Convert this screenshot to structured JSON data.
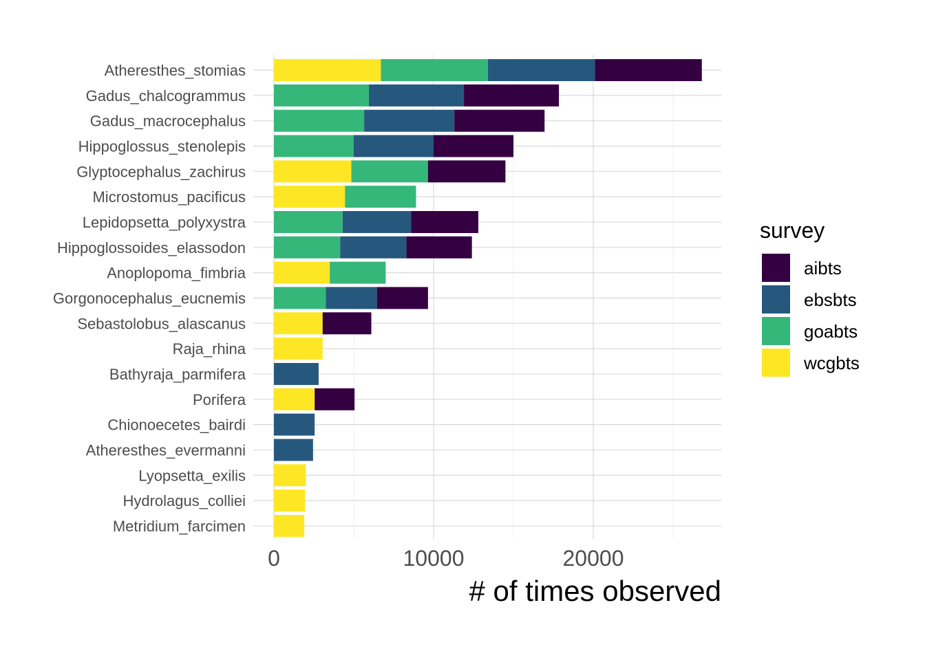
{
  "chart_data": {
    "type": "bar",
    "orientation": "horizontal",
    "stacked": true,
    "title": "",
    "xlabel": "# of times observed",
    "ylabel": "",
    "xlim": [
      0,
      28000
    ],
    "x_ticks": [
      0,
      10000,
      20000
    ],
    "grid": true,
    "legend": {
      "title": "survey",
      "position": "right"
    },
    "categories": [
      "Atheresthes_stomias",
      "Gadus_chalcogrammus",
      "Gadus_macrocephalus",
      "Hippoglossus_stenolepis",
      "Glyptocephalus_zachirus",
      "Microstomus_pacificus",
      "Lepidopsetta_polyxystra",
      "Hippoglossoides_elassodon",
      "Anoplopoma_fimbria",
      "Gorgonocephalus_eucnemis",
      "Sebastolobus_alascanus",
      "Raja_rhina",
      "Bathyraja_parmifera",
      "Porifera",
      "Chionoecetes_bairdi",
      "Atheresthes_evermanni",
      "Lyopsetta_exilis",
      "Hydrolagus_colliei",
      "Metridium_farcimen"
    ],
    "series": [
      {
        "name": "wcgbts",
        "color": "#fde725",
        "values": [
          6700,
          0,
          0,
          0,
          4850,
          4450,
          0,
          0,
          3500,
          0,
          3050,
          3050,
          0,
          2550,
          0,
          0,
          2000,
          1950,
          1900
        ]
      },
      {
        "name": "goabts",
        "color": "#35b779",
        "values": [
          6700,
          5950,
          5650,
          5000,
          4800,
          4450,
          4300,
          4150,
          3500,
          3250,
          0,
          0,
          0,
          0,
          0,
          0,
          0,
          0,
          0
        ]
      },
      {
        "name": "ebsbts",
        "color": "#26587e",
        "values": [
          6700,
          5950,
          5650,
          5000,
          0,
          0,
          4300,
          4150,
          0,
          3200,
          0,
          0,
          2800,
          0,
          2550,
          2450,
          0,
          0,
          0
        ]
      },
      {
        "name": "aibts",
        "color": "#350042",
        "values": [
          6700,
          5950,
          5650,
          5000,
          4850,
          0,
          4200,
          4100,
          0,
          3200,
          3050,
          0,
          0,
          2500,
          0,
          0,
          0,
          0,
          0
        ]
      }
    ],
    "legend_order": [
      "aibts",
      "ebsbts",
      "goabts",
      "wcgbts"
    ]
  }
}
